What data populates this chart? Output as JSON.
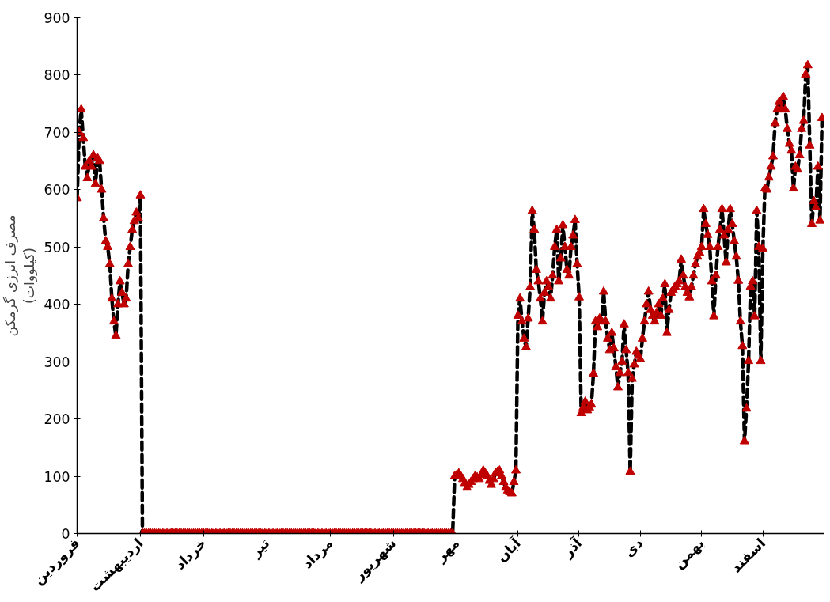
{
  "chart_data": {
    "type": "line",
    "ylabel": "مصرف انرژی گرمکن\n(کیلووات)",
    "ylim": [
      0,
      900
    ],
    "yticks": [
      0,
      100,
      200,
      300,
      400,
      500,
      600,
      700,
      800,
      900
    ],
    "grid": false,
    "marker": "triangle",
    "line_style": "dashed",
    "categories": [
      "فروردین",
      null,
      null,
      null,
      null,
      null,
      null,
      null,
      null,
      null,
      null,
      null,
      null,
      null,
      null,
      null,
      null,
      null,
      null,
      null,
      null,
      null,
      null,
      null,
      null,
      null,
      null,
      null,
      null,
      null,
      null,
      "اردیبهشت",
      null,
      null,
      null,
      null,
      null,
      null,
      null,
      null,
      null,
      null,
      null,
      null,
      null,
      null,
      null,
      null,
      null,
      null,
      null,
      null,
      null,
      null,
      null,
      null,
      null,
      null,
      null,
      null,
      null,
      null,
      "خرداد",
      null,
      null,
      null,
      null,
      null,
      null,
      null,
      null,
      null,
      null,
      null,
      null,
      null,
      null,
      null,
      null,
      null,
      null,
      null,
      null,
      null,
      null,
      null,
      null,
      null,
      null,
      null,
      null,
      null,
      null,
      "تیر",
      null,
      null,
      null,
      null,
      null,
      null,
      null,
      null,
      null,
      null,
      null,
      null,
      null,
      null,
      null,
      null,
      null,
      null,
      null,
      null,
      null,
      null,
      null,
      null,
      null,
      null,
      null,
      null,
      null,
      null,
      "مرداد",
      null,
      null,
      null,
      null,
      null,
      null,
      null,
      null,
      null,
      null,
      null,
      null,
      null,
      null,
      null,
      null,
      null,
      null,
      null,
      null,
      null,
      null,
      null,
      null,
      null,
      null,
      null,
      null,
      null,
      null,
      "شهریور",
      null,
      null,
      null,
      null,
      null,
      null,
      null,
      null,
      null,
      null,
      null,
      null,
      null,
      null,
      null,
      null,
      null,
      null,
      null,
      null,
      null,
      null,
      null,
      null,
      null,
      null,
      null,
      null,
      null,
      null,
      "مهر",
      null,
      null,
      null,
      null,
      null,
      null,
      null,
      null,
      null,
      null,
      null,
      null,
      null,
      null,
      null,
      null,
      null,
      null,
      null,
      null,
      null,
      null,
      null,
      null,
      null,
      null,
      null,
      null,
      null,
      "آبان",
      null,
      null,
      null,
      null,
      null,
      null,
      null,
      null,
      null,
      null,
      null,
      null,
      null,
      null,
      null,
      null,
      null,
      null,
      null,
      null,
      null,
      null,
      null,
      null,
      null,
      null,
      null,
      null,
      null,
      "آذر",
      null,
      null,
      null,
      null,
      null,
      null,
      null,
      null,
      null,
      null,
      null,
      null,
      null,
      null,
      null,
      null,
      null,
      null,
      null,
      null,
      null,
      null,
      null,
      null,
      null,
      null,
      null,
      null,
      null,
      "دی",
      null,
      null,
      null,
      null,
      null,
      null,
      null,
      null,
      null,
      null,
      null,
      null,
      null,
      null,
      null,
      null,
      null,
      null,
      null,
      null,
      null,
      null,
      null,
      null,
      null,
      null,
      null,
      null,
      null,
      "بهمن",
      null,
      null,
      null,
      null,
      null,
      null,
      null,
      null,
      null,
      null,
      null,
      null,
      null,
      null,
      null,
      null,
      null,
      null,
      null,
      null,
      null,
      null,
      null,
      null,
      null,
      null,
      null,
      null,
      null,
      "اسفند",
      null,
      null,
      null,
      null,
      null,
      null,
      null,
      null,
      null,
      null,
      null,
      null,
      null,
      null,
      null,
      null,
      null,
      null,
      null,
      null,
      null,
      null,
      null,
      null,
      null,
      null,
      null,
      null,
      null
    ],
    "series": [
      {
        "color": "#c00000",
        "values": [
          585,
          700,
          740,
          690,
          640,
          620,
          650,
          640,
          660,
          610,
          655,
          650,
          600,
          550,
          510,
          500,
          470,
          410,
          370,
          345,
          400,
          440,
          420,
          400,
          410,
          470,
          500,
          530,
          545,
          560,
          550,
          590,
          0,
          0,
          0,
          0,
          0,
          0,
          0,
          0,
          0,
          0,
          0,
          0,
          0,
          0,
          0,
          0,
          0,
          0,
          0,
          0,
          0,
          0,
          0,
          0,
          0,
          0,
          0,
          0,
          0,
          0,
          0,
          0,
          0,
          0,
          0,
          0,
          0,
          0,
          0,
          0,
          0,
          0,
          0,
          0,
          0,
          0,
          0,
          0,
          0,
          0,
          0,
          0,
          0,
          0,
          0,
          0,
          0,
          0,
          0,
          0,
          0,
          0,
          0,
          0,
          0,
          0,
          0,
          0,
          0,
          0,
          0,
          0,
          0,
          0,
          0,
          0,
          0,
          0,
          0,
          0,
          0,
          0,
          0,
          0,
          0,
          0,
          0,
          0,
          0,
          0,
          0,
          0,
          0,
          0,
          0,
          0,
          0,
          0,
          0,
          0,
          0,
          0,
          0,
          0,
          0,
          0,
          0,
          0,
          0,
          0,
          0,
          0,
          0,
          0,
          0,
          0,
          0,
          0,
          0,
          0,
          0,
          0,
          0,
          0,
          0,
          0,
          0,
          0,
          0,
          0,
          0,
          0,
          0,
          0,
          0,
          0,
          0,
          0,
          0,
          0,
          0,
          0,
          0,
          0,
          0,
          0,
          0,
          0,
          0,
          0,
          0,
          0,
          0,
          100,
          102,
          105,
          100,
          95,
          88,
          80,
          85,
          90,
          95,
          100,
          98,
          95,
          102,
          110,
          105,
          100,
          92,
          85,
          95,
          105,
          108,
          110,
          100,
          90,
          80,
          75,
          72,
          70,
          90,
          110,
          380,
          410,
          370,
          340,
          325,
          375,
          430,
          563,
          530,
          460,
          440,
          410,
          370,
          420,
          440,
          430,
          410,
          450,
          500,
          530,
          440,
          480,
          538,
          500,
          460,
          450,
          500,
          520,
          547,
          470,
          412,
          210,
          220,
          230,
          215,
          220,
          225,
          279,
          370,
          360,
          375,
          370,
          422,
          370,
          340,
          320,
          350,
          323,
          290,
          255,
          280,
          300,
          365,
          320,
          280,
          108,
          270,
          295,
          317,
          310,
          304,
          340,
          370,
          400,
          422,
          390,
          380,
          370,
          385,
          400,
          380,
          410,
          435,
          350,
          390,
          420,
          425,
          431,
          435,
          440,
          478,
          450,
          430,
          420,
          412,
          430,
          450,
          470,
          483,
          490,
          500,
          566,
          540,
          521,
          500,
          440,
          379,
          450,
          500,
          530,
          566,
          520,
          473,
          530,
          566,
          540,
          510,
          483,
          441,
          370,
          327,
          161,
          218,
          301,
          431,
          440,
          379,
          563,
          500,
          301,
          497,
          602,
          600,
          621,
          640,
          658,
          716,
          740,
          753,
          740,
          762,
          740,
          706,
          680,
          668,
          602,
          640,
          635,
          660,
          706,
          720,
          801,
          817,
          677,
          540,
          580,
          569,
          640,
          546,
          725
        ]
      }
    ]
  }
}
